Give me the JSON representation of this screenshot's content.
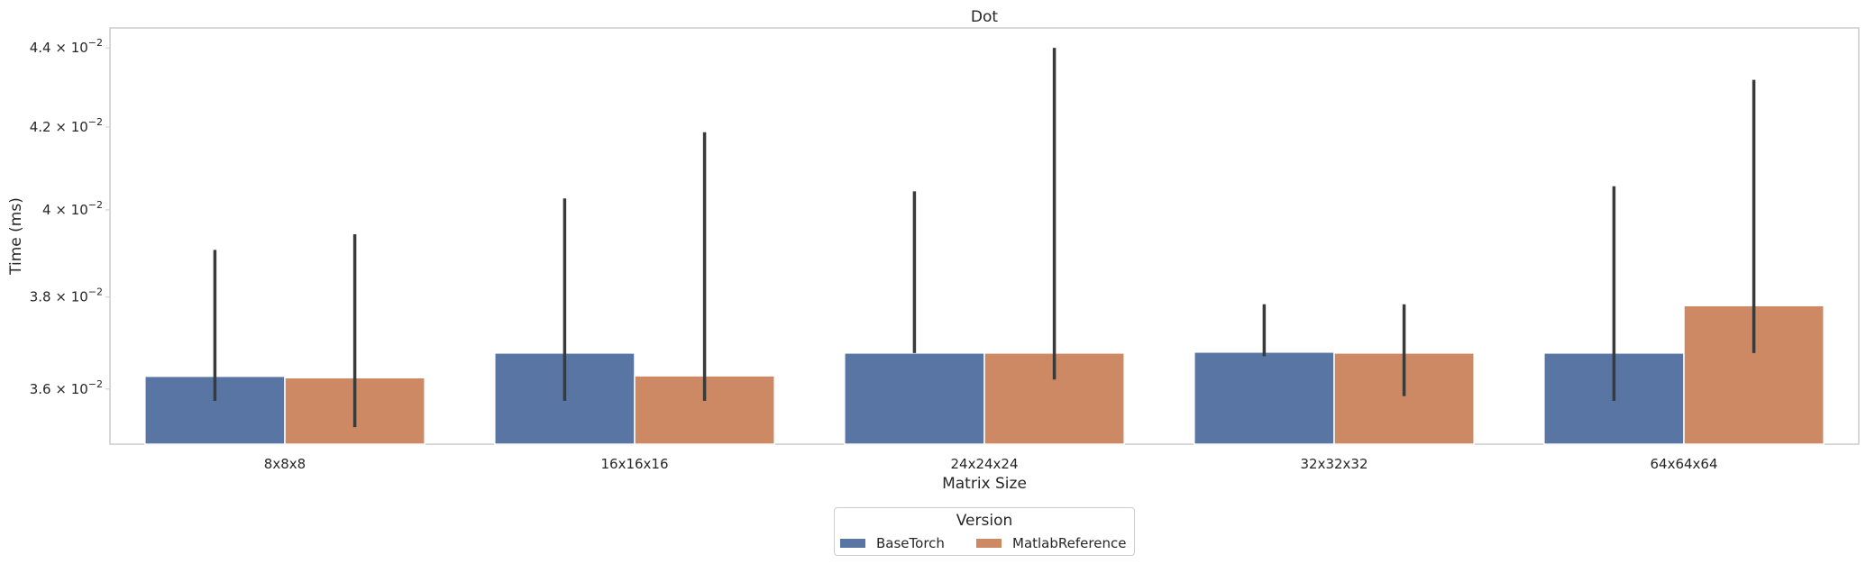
{
  "chart_data": {
    "type": "bar",
    "title": "Dot",
    "xlabel": "Matrix Size",
    "ylabel": "Time (ms)",
    "yscale": "log",
    "ylim": [
      0.03485,
      0.04452
    ],
    "yticks": [
      {
        "value": 0.036,
        "mantissa": "3.6",
        "exponent": "−2"
      },
      {
        "value": 0.038,
        "mantissa": "3.8",
        "exponent": "−2"
      },
      {
        "value": 0.04,
        "mantissa": "4",
        "exponent": "−2"
      },
      {
        "value": 0.042,
        "mantissa": "4.2",
        "exponent": "−2"
      },
      {
        "value": 0.044,
        "mantissa": "4.4",
        "exponent": "−2"
      }
    ],
    "categories": [
      "8x8x8",
      "16x16x16",
      "24x24x24",
      "32x32x32",
      "64x64x64"
    ],
    "series": [
      {
        "name": "BaseTorch",
        "color": "#5875a4",
        "values": [
          0.03627,
          0.03677,
          0.03677,
          0.03679,
          0.03677
        ],
        "err_low": [
          0.03575,
          0.03575,
          0.03677,
          0.0367,
          0.03575
        ],
        "err_high": [
          0.03907,
          0.04027,
          0.04044,
          0.03784,
          0.04056
        ]
      },
      {
        "name": "MatlabReference",
        "color": "#cc8963",
        "values": [
          0.03624,
          0.03628,
          0.03677,
          0.03677,
          0.03781
        ],
        "err_low": [
          0.0352,
          0.03575,
          0.0362,
          0.03585,
          0.03677
        ],
        "err_high": [
          0.03943,
          0.04187,
          0.044,
          0.03784,
          0.04318
        ]
      }
    ],
    "grid": false,
    "legend": {
      "title": "Version",
      "placement": "bottom-center"
    }
  }
}
